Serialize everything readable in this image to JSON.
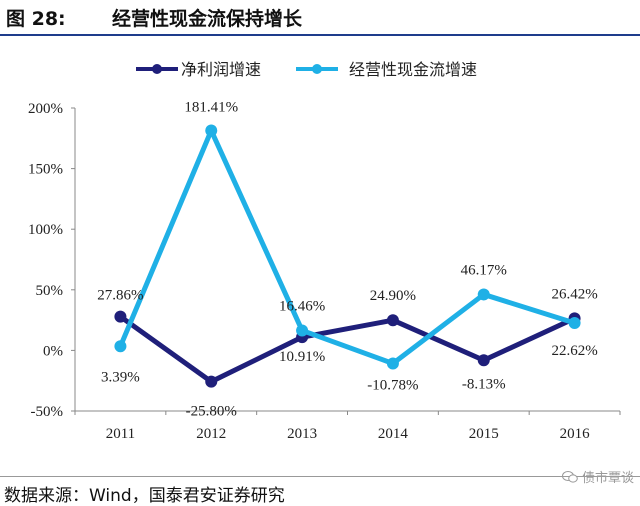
{
  "figure": {
    "label": "图 28:",
    "title": "经营性现金流保持增长"
  },
  "source": "数据来源：Wind，国泰君安证券研究",
  "watermark": "债市覃谈",
  "watermark_icon": "wechat-icon",
  "chart_data": {
    "type": "line",
    "title": "",
    "xlabel": "",
    "ylabel": "",
    "categories": [
      "2011",
      "2012",
      "2013",
      "2014",
      "2015",
      "2016"
    ],
    "ylim": [
      -50,
      200
    ],
    "yticks": [
      "-50%",
      "0%",
      "50%",
      "100%",
      "150%",
      "200%"
    ],
    "ytick_values": [
      -50,
      0,
      50,
      100,
      150,
      200
    ],
    "grid": false,
    "legend_position": "top",
    "series": [
      {
        "name": "净利润增速",
        "color": "#1f1f7a",
        "values": [
          27.86,
          -25.8,
          10.91,
          24.9,
          -8.13,
          26.42
        ],
        "labels": [
          "27.86%",
          "-25.80%",
          "10.91%",
          "24.90%",
          "-8.13%",
          "26.42%"
        ]
      },
      {
        "name": "经营性现金流增速",
        "color": "#1fb0e6",
        "values": [
          3.39,
          181.41,
          16.46,
          -10.78,
          46.17,
          22.62
        ],
        "labels": [
          "3.39%",
          "181.41%",
          "16.46%",
          "-10.78%",
          "46.17%",
          "22.62%"
        ]
      }
    ]
  }
}
